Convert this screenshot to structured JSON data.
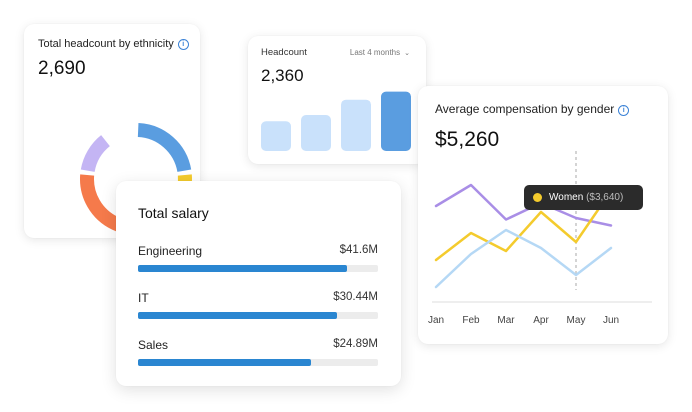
{
  "ethnicity_card": {
    "title": "Total headcount by ethnicity",
    "value": "2,690",
    "segments": [
      {
        "share": 0.23,
        "color": "#5a9de0"
      },
      {
        "share": 0.1,
        "color": "#f4cb2d"
      },
      {
        "share": 0.04,
        "color": "#f4cb2d"
      },
      {
        "share": 0.4,
        "color": "#f57a4b"
      },
      {
        "share": 0.13,
        "color": "#c4b5f4"
      }
    ]
  },
  "headcount_card": {
    "title": "Headcount",
    "range_label": "Last 4 months",
    "value": "2,360",
    "bars": [
      {
        "value": 0.33,
        "color": "#c9e1fb"
      },
      {
        "value": 0.4,
        "color": "#c9e1fb"
      },
      {
        "value": 0.57,
        "color": "#c9e1fb"
      },
      {
        "value": 0.66,
        "color": "#5a9de0"
      }
    ]
  },
  "compensation_card": {
    "title": "Average compensation by gender",
    "value": "$5,260",
    "tooltip": {
      "name": "Women",
      "value": "($3,640)"
    },
    "chart_data": {
      "type": "line",
      "categories": [
        "Jan",
        "Feb",
        "Mar",
        "Apr",
        "May",
        "Jun"
      ],
      "highlight": "May",
      "series": [
        {
          "name": "",
          "color": "#a98ee6",
          "values": [
            0.56,
            0.7,
            0.47,
            0.58,
            0.48,
            0.43
          ]
        },
        {
          "name": "Women",
          "color": "#f4cb2d",
          "values": [
            0.2,
            0.38,
            0.26,
            0.52,
            0.32,
            0.66
          ]
        },
        {
          "name": "",
          "color": "#b5d8f5",
          "values": [
            0.02,
            0.24,
            0.4,
            0.28,
            0.1,
            0.28
          ]
        }
      ]
    }
  },
  "salary_card": {
    "title": "Total salary",
    "rows": [
      {
        "name": "Engineering",
        "amount": "$41.6M",
        "fill": 0.87
      },
      {
        "name": "IT",
        "amount": "$30.44M",
        "fill": 0.83
      },
      {
        "name": "Sales",
        "amount": "$24.89M",
        "fill": 0.72
      }
    ]
  }
}
